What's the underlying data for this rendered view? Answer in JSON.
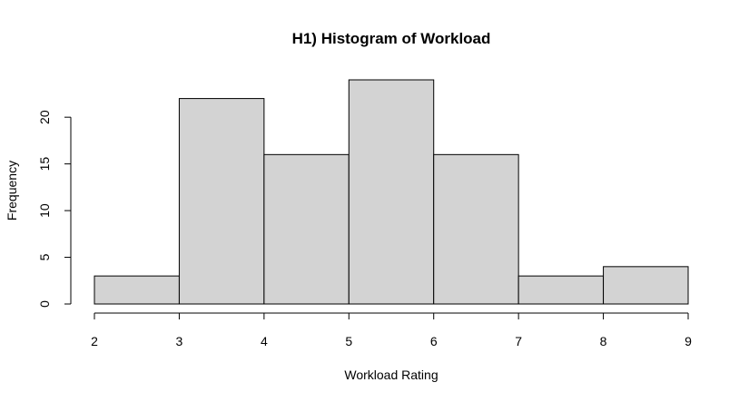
{
  "chart_data": {
    "type": "bar",
    "title": "H1) Histogram of Workload",
    "xlabel": "Workload Rating",
    "ylabel": "Frequency",
    "bins": [
      {
        "from": 2,
        "to": 3,
        "count": 3
      },
      {
        "from": 3,
        "to": 4,
        "count": 22
      },
      {
        "from": 4,
        "to": 5,
        "count": 16
      },
      {
        "from": 5,
        "to": 6,
        "count": 24
      },
      {
        "from": 6,
        "to": 7,
        "count": 16
      },
      {
        "from": 7,
        "to": 8,
        "count": 3
      },
      {
        "from": 8,
        "to": 9,
        "count": 4
      }
    ],
    "x_ticks": [
      "2",
      "3",
      "4",
      "5",
      "6",
      "7",
      "8",
      "9"
    ],
    "y_ticks": [
      "0",
      "5",
      "10",
      "15",
      "20"
    ],
    "xlim": [
      2,
      9
    ],
    "ylim": [
      0,
      24
    ],
    "grid": false,
    "bar_fill": "#d3d3d3",
    "bar_stroke": "#000000"
  }
}
